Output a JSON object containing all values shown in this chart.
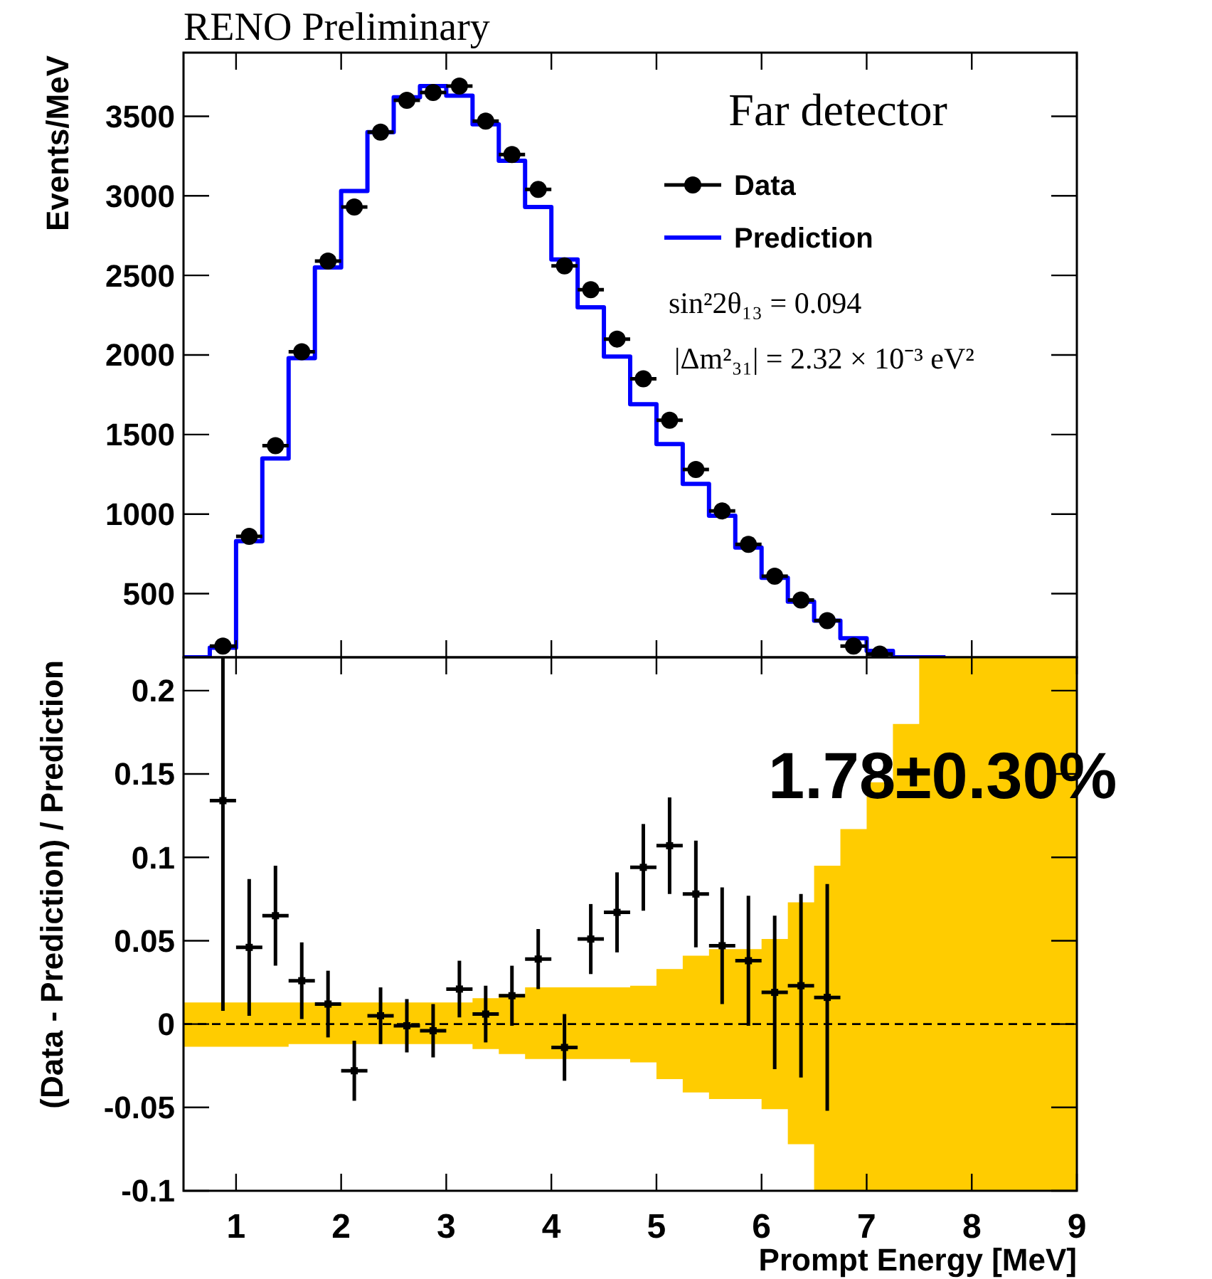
{
  "chart_data": [
    {
      "type": "step",
      "title": "RENO Preliminary",
      "ylabel": "Events/MeV",
      "xlim": [
        0.5,
        9
      ],
      "xticks": [
        1,
        2,
        3,
        4,
        5,
        6,
        7,
        8,
        9
      ],
      "ylim": [
        100,
        3900
      ],
      "yticks": [
        500,
        1000,
        1500,
        2000,
        2500,
        3000,
        3500
      ],
      "tick_labels": "y",
      "legend": "top right",
      "grid": false,
      "annotations": [
        "Far detector",
        "sin²2θ₁₃ = 0.094",
        "|Δm²₃₁| = 2.32 × 10⁻³ eV²"
      ],
      "series": [
        {
          "name": "Data",
          "type": "scatter",
          "marker": "circle",
          "color": "#000000",
          "x": [
            0.875,
            1.125,
            1.375,
            1.625,
            1.875,
            2.125,
            2.375,
            2.625,
            2.875,
            3.125,
            3.375,
            3.625,
            3.875,
            4.125,
            4.375,
            4.625,
            4.875,
            5.125,
            5.375,
            5.625,
            5.875,
            6.125,
            6.375,
            6.625,
            6.875,
            7.125
          ],
          "values": [
            170,
            860,
            1430,
            2020,
            2590,
            2930,
            3400,
            3600,
            3650,
            3690,
            3470,
            3260,
            3040,
            2560,
            2410,
            2100,
            1850,
            1590,
            1280,
            1020,
            810,
            610,
            460,
            330,
            170,
            120
          ],
          "xerrors": [
            0.125,
            0.125,
            0.125,
            0.125,
            0.125,
            0.125,
            0.125,
            0.125,
            0.125,
            0.125,
            0.125,
            0.125,
            0.125,
            0.125,
            0.125,
            0.125,
            0.125,
            0.125,
            0.125,
            0.125,
            0.125,
            0.125,
            0.125,
            0.125,
            0.125,
            0.125
          ]
        },
        {
          "name": "Prediction",
          "color": "#0000ff",
          "x": [
            0.5,
            0.75,
            1.0,
            1.25,
            1.5,
            1.75,
            2.0,
            2.25,
            2.5,
            2.75,
            3.0,
            3.25,
            3.5,
            3.75,
            4.0,
            4.25,
            4.5,
            4.75,
            5.0,
            5.25,
            5.5,
            5.75,
            6.0,
            6.25,
            6.5,
            6.75,
            7.0,
            7.25,
            7.5,
            7.75
          ],
          "values": [
            100,
            160,
            830,
            1350,
            1980,
            2550,
            3030,
            3400,
            3620,
            3690,
            3630,
            3450,
            3220,
            2930,
            2600,
            2300,
            1990,
            1690,
            1440,
            1190,
            990,
            790,
            600,
            450,
            330,
            220,
            140,
            100,
            100,
            100
          ]
        }
      ]
    },
    {
      "type": "scatter",
      "xlabel": "Prompt Energy [MeV]",
      "ylabel": "(Data - Prediction) / Prediction",
      "xlim": [
        0.5,
        9
      ],
      "xticks": [
        1,
        2,
        3,
        4,
        5,
        6,
        7,
        8,
        9
      ],
      "ylim": [
        -0.1,
        0.22
      ],
      "yticks": [
        -0.1,
        -0.05,
        0,
        0.05,
        0.1,
        0.15,
        0.2
      ],
      "grid": false,
      "annotations": [
        "1.78±0.30%"
      ],
      "series": [
        {
          "type": "step",
          "color": "#000000",
          "line_style": "dashed",
          "x": [
            0.5,
            1.5,
            3.25,
            3.5,
            3.75,
            4.75,
            5.0,
            5.25,
            5.5,
            6.0,
            6.25,
            6.5,
            6.75,
            7.0,
            7.25,
            7.5,
            9
          ],
          "values": [
            0,
            0,
            0,
            0,
            0,
            0,
            0,
            0,
            0,
            0,
            0,
            0,
            0,
            0,
            0,
            0,
            0
          ],
          "upper": [
            0.013,
            0.013,
            0.0155,
            0.018,
            0.022,
            0.023,
            0.033,
            0.041,
            0.045,
            0.051,
            0.073,
            0.095,
            0.117,
            0.145,
            0.18,
            0.22,
            0.22
          ],
          "lower": [
            -0.0136,
            -0.012,
            -0.015,
            -0.018,
            -0.021,
            -0.023,
            -0.033,
            -0.041,
            -0.045,
            -0.051,
            -0.072,
            -0.1,
            -0.1,
            -0.1,
            -0.1,
            -0.1,
            -0.1
          ]
        },
        {
          "marker": "square",
          "color": "#000000",
          "x": [
            0.875,
            1.125,
            1.375,
            1.625,
            1.875,
            2.125,
            2.375,
            2.625,
            2.875,
            3.125,
            3.375,
            3.625,
            3.875,
            4.125,
            4.375,
            4.625,
            4.875,
            5.125,
            5.375,
            5.625,
            5.875,
            6.125,
            6.375,
            6.625
          ],
          "values": [
            0.134,
            0.046,
            0.065,
            0.026,
            0.012,
            -0.028,
            0.005,
            -0.001,
            -0.004,
            0.021,
            0.006,
            0.017,
            0.039,
            -0.014,
            0.051,
            0.067,
            0.094,
            0.107,
            0.078,
            0.047,
            0.038,
            0.019,
            0.023,
            0.016
          ],
          "errors": [
            [
              0.008,
              0.22
            ],
            0.041,
            0.03,
            0.023,
            0.02,
            0.018,
            0.017,
            0.016,
            0.016,
            0.017,
            0.017,
            0.018,
            0.018,
            0.02,
            0.021,
            0.024,
            0.026,
            0.029,
            0.032,
            0.035,
            0.039,
            0.046,
            0.055,
            0.068
          ],
          "xerrors": [
            0.125,
            0.125,
            0.125,
            0.125,
            0.125,
            0.125,
            0.125,
            0.125,
            0.125,
            0.125,
            0.125,
            0.125,
            0.125,
            0.125,
            0.125,
            0.125,
            0.125,
            0.125,
            0.125,
            0.125,
            0.125,
            0.125,
            0.125,
            0.125
          ]
        }
      ]
    }
  ]
}
